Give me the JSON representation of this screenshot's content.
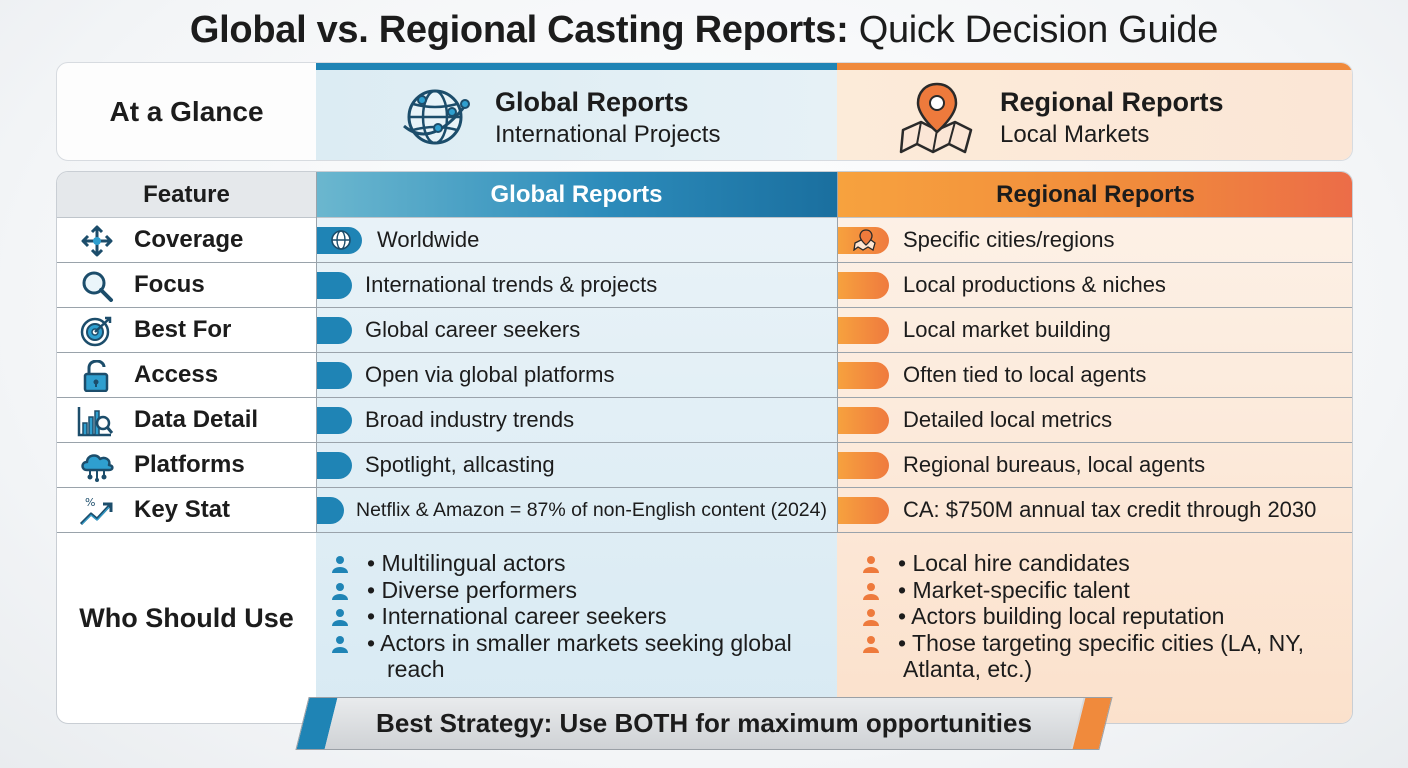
{
  "title": {
    "bold": "Global vs. Regional Casting Reports:",
    "light": "Quick Decision Guide"
  },
  "glance": {
    "label": "At a Glance",
    "global": {
      "title": "Global Reports",
      "subtitle": "International Projects",
      "icon": "globe-network-icon"
    },
    "regional": {
      "title": "Regional Reports",
      "subtitle": "Local Markets",
      "icon": "map-pin-icon"
    }
  },
  "table": {
    "headers": {
      "feature": "Feature",
      "global": "Global Reports",
      "regional": "Regional Reports"
    },
    "rows": [
      {
        "feature": "Coverage",
        "icon": "move-arrows-icon",
        "global": "Worldwide",
        "regional": "Specific cities/regions"
      },
      {
        "feature": "Focus",
        "icon": "magnifier-icon",
        "global": "International trends & projects",
        "regional": "Local productions & niches"
      },
      {
        "feature": "Best For",
        "icon": "target-icon",
        "global": "Global career seekers",
        "regional": "Local market building"
      },
      {
        "feature": "Access",
        "icon": "unlock-icon",
        "global": "Open via global platforms",
        "regional": "Often tied to local agents"
      },
      {
        "feature": "Data Detail",
        "icon": "chart-magnifier-icon",
        "global": "Broad industry trends",
        "regional": "Detailed local metrics"
      },
      {
        "feature": "Platforms",
        "icon": "cloud-network-icon",
        "global": "Spotlight, allcasting",
        "regional": "Regional bureaus, local agents"
      },
      {
        "feature": "Key Stat",
        "icon": "trend-up-icon",
        "global": "Netflix & Amazon = 87% of non-English content (2024)",
        "regional": "CA: $750M annual tax credit through 2030"
      }
    ],
    "who": {
      "label": "Who Should Use",
      "global": [
        "• Multilingual actors",
        "• Diverse performers",
        "• International career seekers",
        "• Actors in smaller markets seeking global",
        "reach"
      ],
      "regional": [
        "• Local hire candidates",
        "• Market-specific talent",
        "• Actors building local reputation",
        "• Those targeting specific cities (LA, NY,",
        "Atlanta, etc.)"
      ]
    }
  },
  "banner": "Best Strategy: Use BOTH for maximum opportunities",
  "colors": {
    "global": "#1f84b5",
    "regional": "#f08a3c"
  }
}
